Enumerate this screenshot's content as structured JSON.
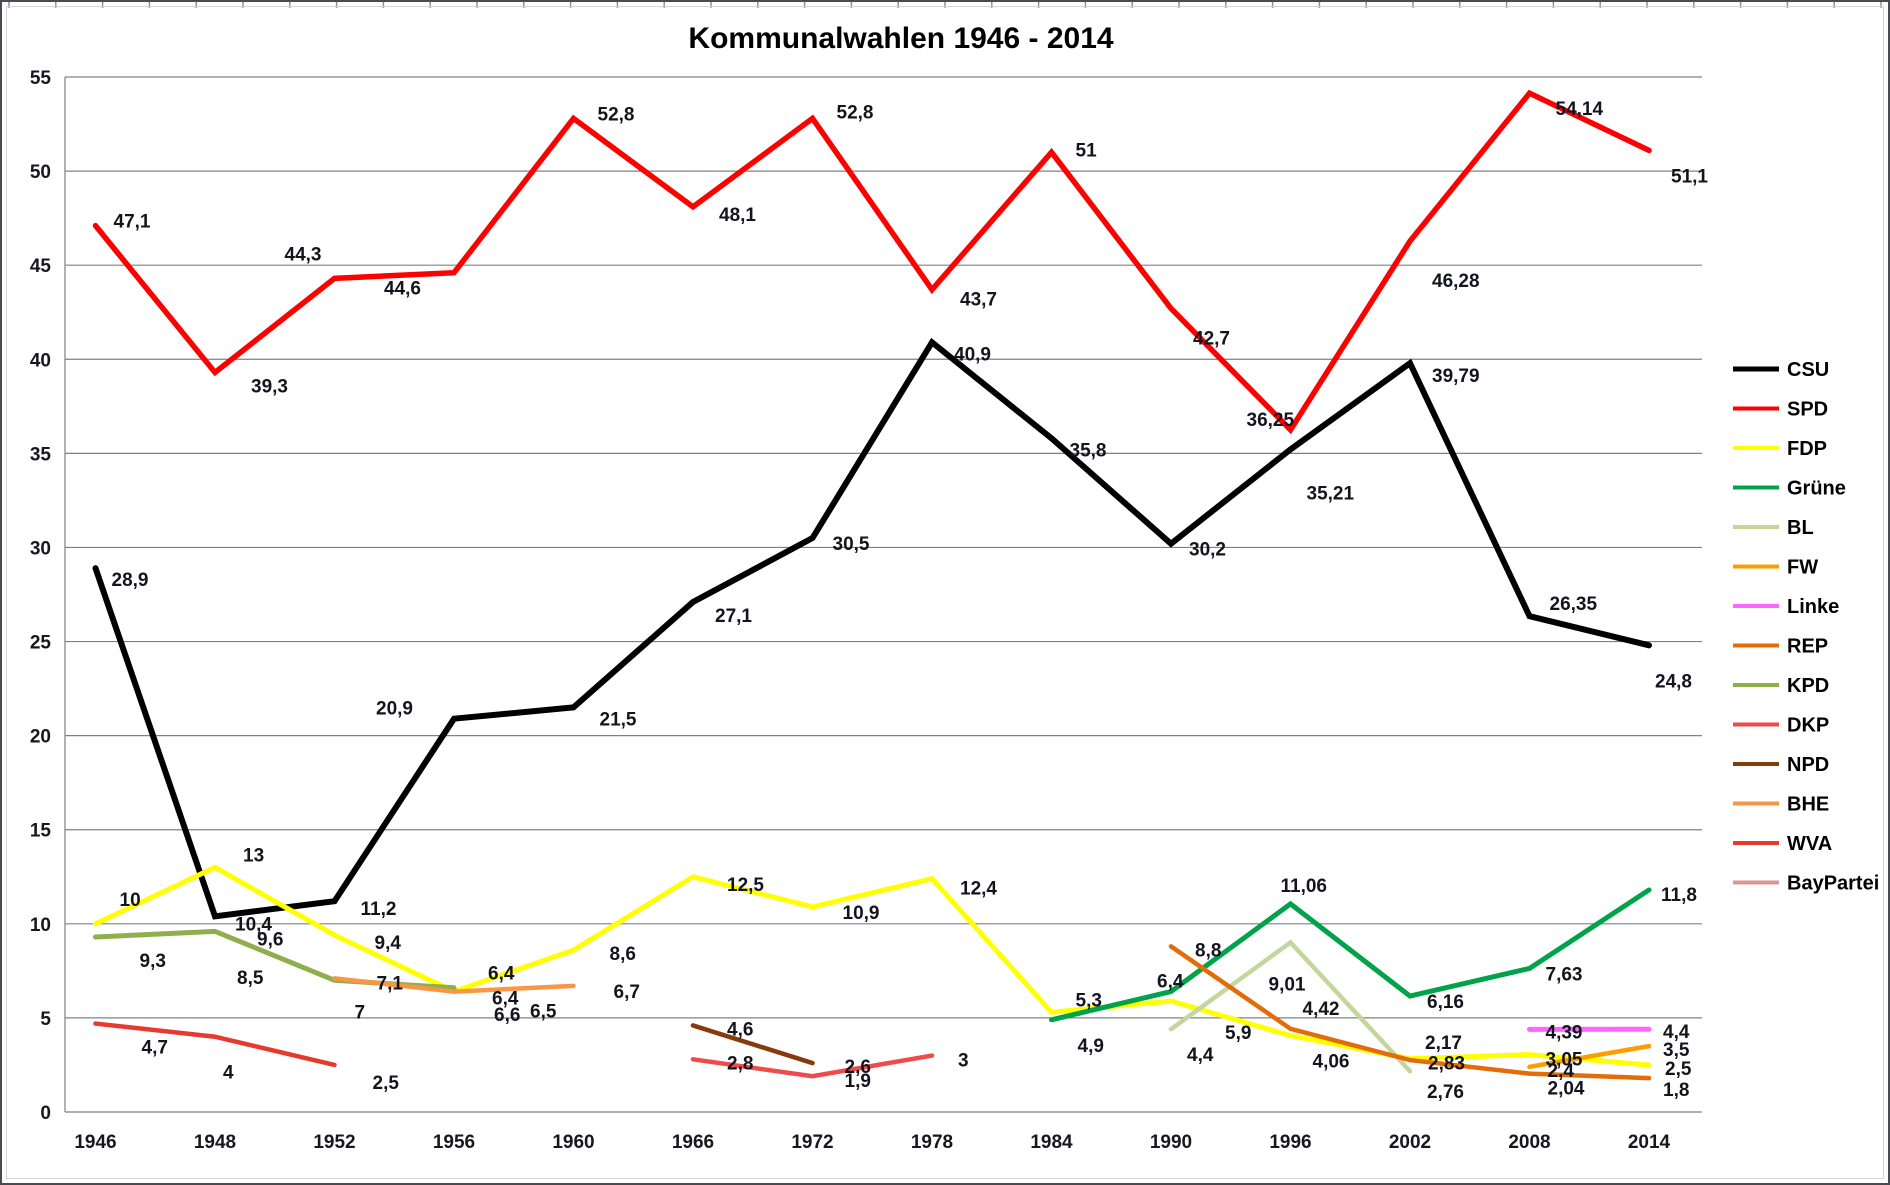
{
  "chart_data": {
    "type": "line",
    "title": "Kommunalwahlen 1946 - 2014",
    "xlabel": "",
    "ylabel": "",
    "grid": true,
    "legend_position": "right",
    "categories": [
      "1946",
      "1948",
      "1952",
      "1956",
      "1960",
      "1966",
      "1972",
      "1978",
      "1984",
      "1990",
      "1996",
      "2002",
      "2008",
      "2014"
    ],
    "y_axis": {
      "min": 0,
      "max": 55,
      "step": 5,
      "tick_labels": [
        "0",
        "5",
        "10",
        "15",
        "20",
        "25",
        "30",
        "35",
        "40",
        "45",
        "50",
        "55"
      ]
    },
    "colors": {
      "grid": "#808080",
      "data_label": "#14141e",
      "axis_text": "#17171f"
    },
    "series": [
      {
        "name": "CSU",
        "color": "#000000",
        "width": 6,
        "values": [
          28.9,
          10.4,
          11.2,
          20.9,
          21.5,
          27.1,
          30.5,
          40.9,
          35.8,
          30.2,
          35.21,
          39.79,
          26.35,
          24.8
        ],
        "labels": [
          {
            "text": "28,9",
            "dx": 16,
            "dy": 12
          },
          {
            "text": "10,4",
            "dx": 20,
            "dy": 8
          },
          {
            "text": "11,2",
            "dx": 26,
            "dy": 8
          },
          {
            "text": "20,9",
            "dx": -78,
            "dy": -10
          },
          {
            "text": "21,5",
            "dx": 26,
            "dy": 12
          },
          {
            "text": "27,1",
            "dx": 22,
            "dy": 14
          },
          {
            "text": "30,5",
            "dx": 20,
            "dy": 6
          },
          {
            "text": "40,9",
            "dx": 22,
            "dy": 12
          },
          {
            "text": "35,8",
            "dx": 18,
            "dy": 12
          },
          {
            "text": "30,2",
            "dx": 18,
            "dy": 6
          },
          {
            "text": "35,21",
            "dx": 16,
            "dy": 44
          },
          {
            "text": "39,79",
            "dx": 22,
            "dy": 13
          },
          {
            "text": "26,35",
            "dx": 20,
            "dy": -12
          },
          {
            "text": "24,8",
            "dx": 6,
            "dy": 36
          }
        ]
      },
      {
        "name": "SPD",
        "color": "#FF0000",
        "width": 5.5,
        "values": [
          47.1,
          39.3,
          44.3,
          44.6,
          52.8,
          48.1,
          52.8,
          43.7,
          51,
          42.7,
          36.25,
          46.28,
          54.14,
          51.1
        ],
        "labels": [
          {
            "text": "47,1",
            "dx": 18,
            "dy": -4
          },
          {
            "text": "39,3",
            "dx": 36,
            "dy": 14
          },
          {
            "text": "44,3",
            "dx": -50,
            "dy": -24
          },
          {
            "text": "44,6",
            "dx": -70,
            "dy": 16
          },
          {
            "text": "52,8",
            "dx": 24,
            "dy": -4
          },
          {
            "text": "48,1",
            "dx": 26,
            "dy": 8
          },
          {
            "text": "52,8",
            "dx": 24,
            "dy": -6
          },
          {
            "text": "43,7",
            "dx": 28,
            "dy": 10
          },
          {
            "text": "51",
            "dx": 24,
            "dy": -2
          },
          {
            "text": "42,7",
            "dx": 22,
            "dy": 30
          },
          {
            "text": "36,25",
            "dx": -44,
            "dy": -10
          },
          {
            "text": "46,28",
            "dx": 22,
            "dy": 40
          },
          {
            "text": "54,14",
            "dx": 26,
            "dy": 16
          },
          {
            "text": "51,1",
            "dx": 22,
            "dy": 26
          }
        ]
      },
      {
        "name": "FDP",
        "color": "#FFFF00",
        "width": 5,
        "values": [
          10,
          13,
          9.4,
          6.4,
          8.6,
          12.5,
          10.9,
          12.4,
          5.3,
          5.9,
          4.06,
          2.83,
          3.05,
          2.5
        ],
        "labels": [
          {
            "text": "10",
            "dx": 24,
            "dy": -24
          },
          {
            "text": "13",
            "dx": 28,
            "dy": -12
          },
          {
            "text": "9,4",
            "dx": 40,
            "dy": 8
          },
          {
            "text": "6,4",
            "dx": 34,
            "dy": -18
          },
          {
            "text": "8,6",
            "dx": 36,
            "dy": 4
          },
          {
            "text": "12,5",
            "dx": 34,
            "dy": 8
          },
          {
            "text": "10,9",
            "dx": 30,
            "dy": 6
          },
          {
            "text": "12,4",
            "dx": 28,
            "dy": 10
          },
          {
            "text": "5,3",
            "dx": 24,
            "dy": -12
          },
          {
            "text": "5,9",
            "dx": 54,
            "dy": 32
          },
          {
            "text": "4,06",
            "dx": 22,
            "dy": 26
          },
          {
            "text": "2,83",
            "dx": 18,
            "dy": 5
          },
          {
            "text": "3,05",
            "dx": 16,
            "dy": 5
          },
          {
            "text": "2,5",
            "dx": 16,
            "dy": 4
          }
        ]
      },
      {
        "name": "Grüne",
        "color": "#00A349",
        "width": 5,
        "values": [
          null,
          null,
          null,
          null,
          null,
          null,
          null,
          null,
          4.9,
          6.4,
          11.06,
          6.16,
          7.63,
          11.8
        ],
        "labels": [
          null,
          null,
          null,
          null,
          null,
          null,
          null,
          null,
          {
            "text": "4,9",
            "dx": 26,
            "dy": 26
          },
          {
            "text": "6,4",
            "dx": -14,
            "dy": -10
          },
          {
            "text": "11,06",
            "dx": -10,
            "dy": -18
          },
          {
            "text": "6,16",
            "dx": 17,
            "dy": 6
          },
          {
            "text": "7,63",
            "dx": 16,
            "dy": 6
          },
          {
            "text": "11,8",
            "dx": 12,
            "dy": 5
          }
        ]
      },
      {
        "name": "BL",
        "color": "#C3D69B",
        "width": 4.5,
        "values": [
          null,
          null,
          null,
          null,
          null,
          null,
          null,
          null,
          null,
          4.4,
          9.01,
          2.17,
          null,
          null
        ],
        "labels": [
          null,
          null,
          null,
          null,
          null,
          null,
          null,
          null,
          null,
          {
            "text": "4,4",
            "dx": 16,
            "dy": 26
          },
          {
            "text": "9,01",
            "dx": -22,
            "dy": 42
          },
          {
            "text": "2,17",
            "dx": 15,
            "dy": -28
          },
          null,
          null
        ]
      },
      {
        "name": "FW",
        "color": "#FF9C00",
        "width": 4.5,
        "values": [
          null,
          null,
          null,
          null,
          null,
          null,
          null,
          null,
          null,
          null,
          null,
          null,
          2.4,
          3.5
        ],
        "labels": [
          null,
          null,
          null,
          null,
          null,
          null,
          null,
          null,
          null,
          null,
          null,
          null,
          {
            "text": "2,4",
            "dx": 18,
            "dy": 4
          },
          {
            "text": "3,5",
            "dx": 14,
            "dy": 4
          }
        ]
      },
      {
        "name": "Linke",
        "color": "#FF66FF",
        "width": 5,
        "values": [
          null,
          null,
          null,
          null,
          null,
          null,
          null,
          null,
          null,
          null,
          null,
          null,
          4.39,
          4.4
        ],
        "labels": [
          null,
          null,
          null,
          null,
          null,
          null,
          null,
          null,
          null,
          null,
          null,
          null,
          {
            "text": "4,39",
            "dx": 16,
            "dy": 3
          },
          {
            "text": "4,4",
            "dx": 14,
            "dy": 3
          }
        ]
      },
      {
        "name": "REP",
        "color": "#E36C09",
        "width": 4.5,
        "values": [
          null,
          null,
          null,
          null,
          null,
          null,
          null,
          null,
          null,
          8.8,
          4.42,
          2.76,
          2.04,
          1.8
        ],
        "labels": [
          null,
          null,
          null,
          null,
          null,
          null,
          null,
          null,
          null,
          {
            "text": "8,8",
            "dx": 24,
            "dy": 4
          },
          {
            "text": "4,42",
            "dx": 12,
            "dy": -20
          },
          {
            "text": "2,76",
            "dx": 17,
            "dy": 32
          },
          {
            "text": "2,04",
            "dx": 18,
            "dy": 15
          },
          {
            "text": "1,8",
            "dx": 14,
            "dy": 12
          }
        ]
      },
      {
        "name": "KPD",
        "color": "#8FAF4C",
        "width": 5,
        "values": [
          9.3,
          9.6,
          7,
          6.6,
          null,
          null,
          null,
          null,
          null,
          null,
          null,
          null,
          null,
          null
        ],
        "labels": [
          {
            "text": "9,3",
            "dx": 44,
            "dy": 24
          },
          {
            "text": "9,6",
            "dx": 42,
            "dy": 8
          },
          {
            "text": "7",
            "dx": 20,
            "dy": 32
          },
          {
            "text": "6,6",
            "dx": 40,
            "dy": 27
          },
          null,
          null,
          null,
          null,
          null,
          null,
          null,
          null,
          null,
          null
        ]
      },
      {
        "name": "DKP",
        "color": "#EF4B4B",
        "width": 4.5,
        "values": [
          null,
          null,
          null,
          null,
          null,
          2.8,
          1.9,
          3,
          null,
          null,
          null,
          null,
          null,
          null
        ],
        "labels": [
          null,
          null,
          null,
          null,
          null,
          {
            "text": "2,8",
            "dx": 34,
            "dy": 4
          },
          {
            "text": "1,9",
            "dx": 32,
            "dy": 5
          },
          {
            "text": "3",
            "dx": 26,
            "dy": 5
          },
          null,
          null,
          null,
          null,
          null,
          null
        ]
      },
      {
        "name": "NPD",
        "color": "#843C0C",
        "width": 4.5,
        "values": [
          null,
          null,
          null,
          null,
          null,
          4.6,
          2.6,
          null,
          null,
          null,
          null,
          null,
          null,
          null
        ],
        "labels": [
          null,
          null,
          null,
          null,
          null,
          {
            "text": "4,6",
            "dx": 34,
            "dy": 4
          },
          {
            "text": "2,6",
            "dx": 32,
            "dy": 4
          },
          null,
          null,
          null,
          null,
          null,
          null,
          null
        ]
      },
      {
        "name": "BHE",
        "color": "#F79646",
        "width": 4.5,
        "values": [
          null,
          null,
          7.1,
          6.4,
          6.7,
          null,
          null,
          null,
          null,
          null,
          null,
          null,
          null,
          null
        ],
        "labels": [
          null,
          null,
          {
            "text": "7,1",
            "dx": 42,
            "dy": 5
          },
          {
            "text": "6,4",
            "dx": 38,
            "dy": 7
          },
          {
            "text": "6,7",
            "dx": 40,
            "dy": 6
          },
          null,
          null,
          null,
          null,
          null,
          null,
          null,
          null,
          null
        ]
      },
      {
        "name": "WVA",
        "color": "#E43B2E",
        "width": 4.5,
        "values": [
          4.7,
          4,
          2.5,
          null,
          null,
          null,
          null,
          null,
          null,
          null,
          null,
          null,
          null,
          null
        ],
        "labels": [
          {
            "text": "4,7",
            "dx": 46,
            "dy": 24
          },
          {
            "text": "4",
            "dx": 8,
            "dy": 36
          },
          {
            "text": "2,5",
            "dx": 38,
            "dy": 18
          },
          null,
          null,
          null,
          null,
          null,
          null,
          null,
          null,
          null,
          null,
          null
        ]
      },
      {
        "name": "BayPartei",
        "color": "#D99694",
        "width": 4,
        "values": [
          null,
          8.5,
          null,
          6.5,
          null,
          null,
          null,
          null,
          null,
          null,
          null,
          null,
          null,
          null
        ],
        "labels": [
          null,
          {
            "text": "8,5",
            "dx": 22,
            "dy": 26
          },
          null,
          {
            "text": "6,5",
            "dx": 76,
            "dy": 22
          },
          null,
          null,
          null,
          null,
          null,
          null,
          null,
          null,
          null,
          null
        ]
      }
    ]
  }
}
